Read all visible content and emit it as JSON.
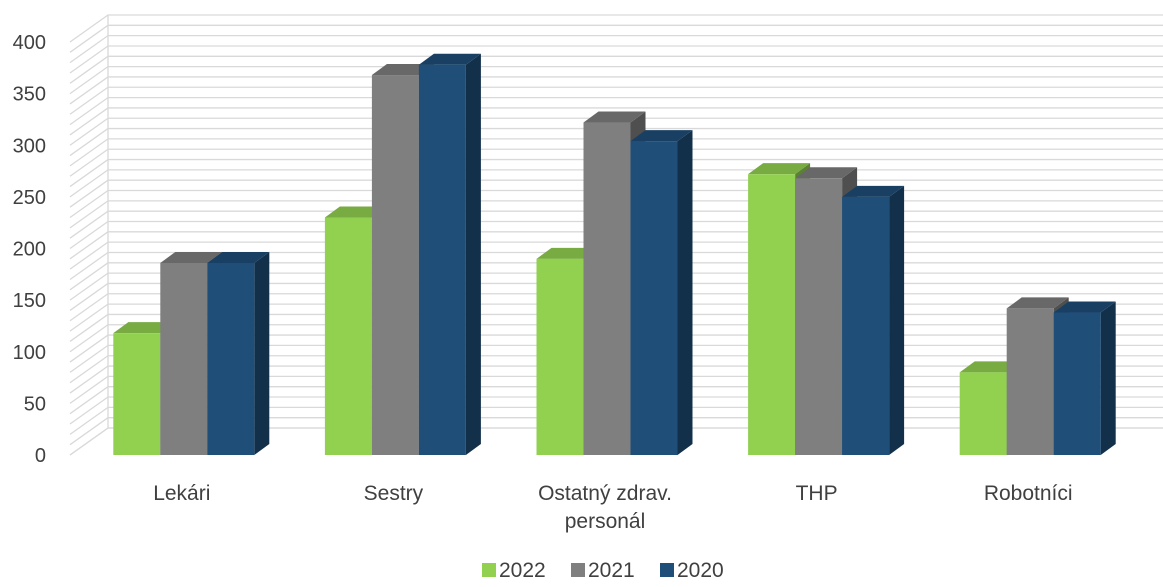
{
  "chart_data": {
    "type": "bar",
    "style": "3d-clustered-column",
    "categories": [
      "Lekári",
      "Sestry",
      "Ostatný zdrav. personál",
      "THP",
      "Robotníci"
    ],
    "category_lines": [
      [
        "Lekári"
      ],
      [
        "Sestry"
      ],
      [
        "Ostatný zdrav.",
        "personál"
      ],
      [
        "THP"
      ],
      [
        "Robotníci"
      ]
    ],
    "series": [
      {
        "name": "2022",
        "values": [
          118,
          230,
          190,
          272,
          80
        ],
        "color": "#92d050"
      },
      {
        "name": "2021",
        "values": [
          186,
          368,
          322,
          268,
          142
        ],
        "color": "#7f7f7f"
      },
      {
        "name": "2020",
        "values": [
          186,
          378,
          304,
          250,
          138
        ],
        "color": "#1f4e79"
      }
    ],
    "ylim": [
      0,
      400
    ],
    "yticks": [
      0,
      50,
      100,
      150,
      200,
      250,
      300,
      350,
      400
    ],
    "grid": true,
    "legend_position": "bottom"
  }
}
